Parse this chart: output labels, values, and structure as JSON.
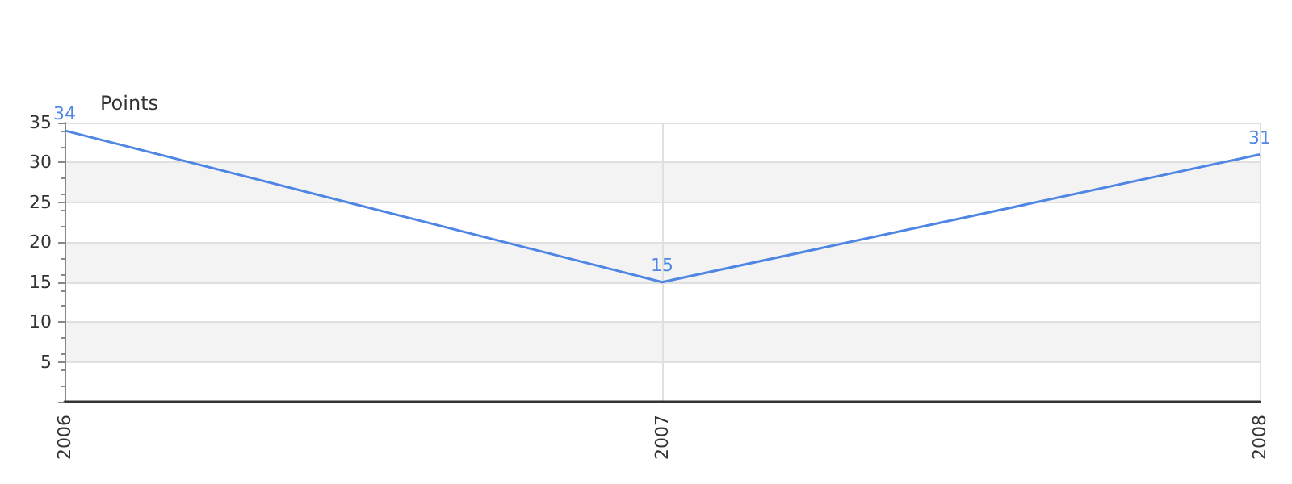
{
  "chart_data": {
    "type": "line",
    "ylabel": "Points",
    "categories": [
      "2006",
      "2007",
      "2008"
    ],
    "series": [
      {
        "color": "#4f86e4",
        "values": [
          34,
          15,
          31
        ]
      }
    ],
    "ylim": [
      0,
      35
    ],
    "yticks": [
      {
        "value": 0,
        "label": null
      },
      5,
      10,
      15,
      20,
      25,
      30,
      35
    ],
    "grid": true,
    "data_labels": true,
    "marker": "none",
    "line_style": "solid"
  }
}
